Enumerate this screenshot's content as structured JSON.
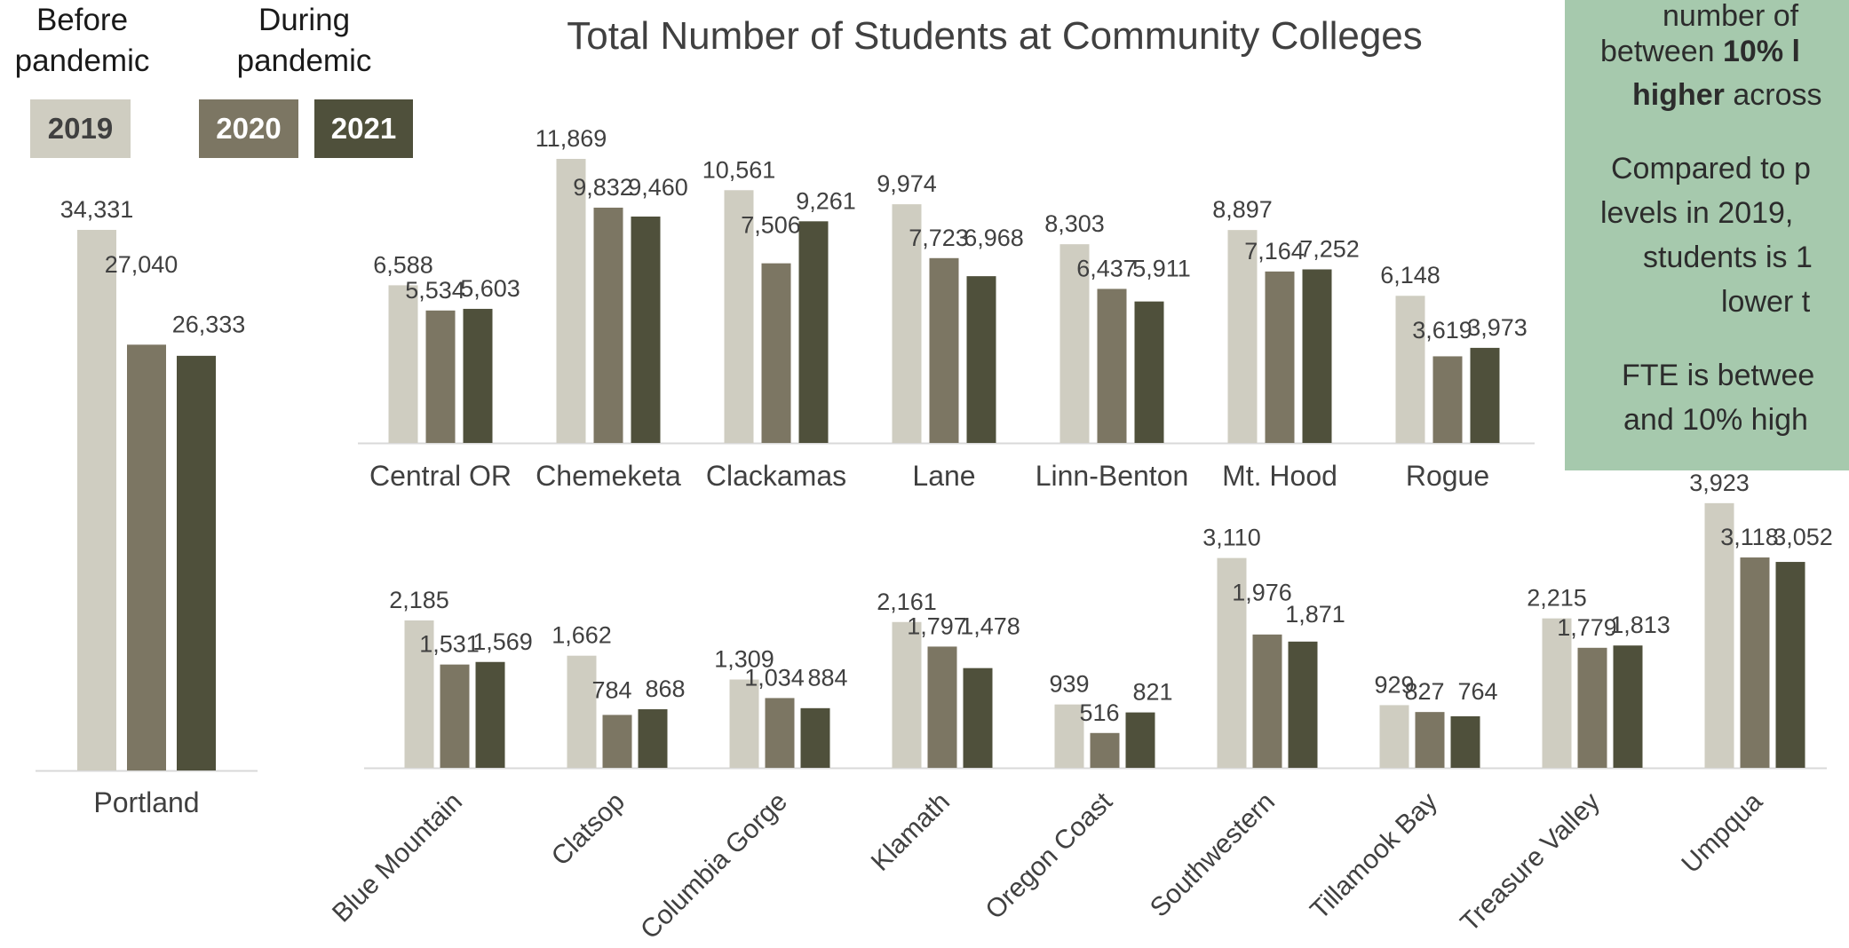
{
  "header": {
    "before_label": "Before\npandemic",
    "during_label": "During\npandemic",
    "years": [
      "2019",
      "2020",
      "2021"
    ]
  },
  "colors": {
    "2019": "#cfcdc1",
    "2020": "#7c7663",
    "2021": "#4f503b",
    "note_bg": "#a6c9ad",
    "text": "#404040"
  },
  "note": {
    "line1": "number of",
    "line2_pre": "between ",
    "line2_bold": "10% l",
    "line3_bold": "higher",
    "line3_post": " across",
    "line4": "Compared to p",
    "line5": "levels in 2019,",
    "line6": "students is 1",
    "line7": "lower t",
    "line8": "FTE is betwee",
    "line9": "and 10% high"
  },
  "chart_data": {
    "type": "bar",
    "title": "Total Number of Students at Community Colleges",
    "series_names": [
      "2019",
      "2020",
      "2021"
    ],
    "panels": [
      {
        "id": "portland",
        "categories": [
          "Portland"
        ],
        "values": [
          [
            34331,
            27040,
            26333
          ]
        ],
        "labels": [
          [
            "34,331",
            "27,040",
            "26,333"
          ]
        ]
      },
      {
        "id": "large",
        "categories": [
          "Central OR",
          "Chemeketa",
          "Clackamas",
          "Lane",
          "Linn-Benton",
          "Mt. Hood",
          "Rogue"
        ],
        "values": [
          [
            6588,
            5534,
            5603
          ],
          [
            11869,
            9832,
            9460
          ],
          [
            10561,
            7506,
            9261
          ],
          [
            9974,
            7723,
            6968
          ],
          [
            8303,
            6437,
            5911
          ],
          [
            8897,
            7164,
            7252
          ],
          [
            6148,
            3619,
            3973
          ]
        ],
        "labels": [
          [
            "6,588",
            "5,534",
            "5,603"
          ],
          [
            "11,869",
            "9,832",
            "9,460"
          ],
          [
            "10,561",
            "7,506",
            "9,261"
          ],
          [
            "9,974",
            "7,723",
            "6,968"
          ],
          [
            "8,303",
            "6,437",
            "5,911"
          ],
          [
            "8,897",
            "7,164",
            "7,252"
          ],
          [
            "6,148",
            "3,619",
            "3,973"
          ]
        ]
      },
      {
        "id": "small",
        "categories": [
          "Blue Mountain",
          "Clatsop",
          "Columbia Gorge",
          "Klamath",
          "Oregon Coast",
          "Southwestern",
          "Tillamook Bay",
          "Treasure Valley",
          "Umpqua"
        ],
        "values": [
          [
            2185,
            1531,
            1569
          ],
          [
            1662,
            784,
            868
          ],
          [
            1309,
            1034,
            884
          ],
          [
            2161,
            1797,
            1478
          ],
          [
            939,
            516,
            821
          ],
          [
            3110,
            1976,
            1871
          ],
          [
            929,
            827,
            764
          ],
          [
            2215,
            1779,
            1813
          ],
          [
            3923,
            3118,
            3052
          ]
        ],
        "labels": [
          [
            "2,185",
            "1,531",
            "1,569"
          ],
          [
            "1,662",
            "784",
            "868"
          ],
          [
            "1,309",
            "1,034",
            "884"
          ],
          [
            "2,161",
            "1,797",
            "1,478"
          ],
          [
            "939",
            "516",
            "821"
          ],
          [
            "3,110",
            "1,976",
            "1,871"
          ],
          [
            "929",
            "827",
            "764"
          ],
          [
            "2,215",
            "1,779",
            "1,813"
          ],
          [
            "3,923",
            "3,118",
            "3,052"
          ]
        ]
      }
    ]
  }
}
